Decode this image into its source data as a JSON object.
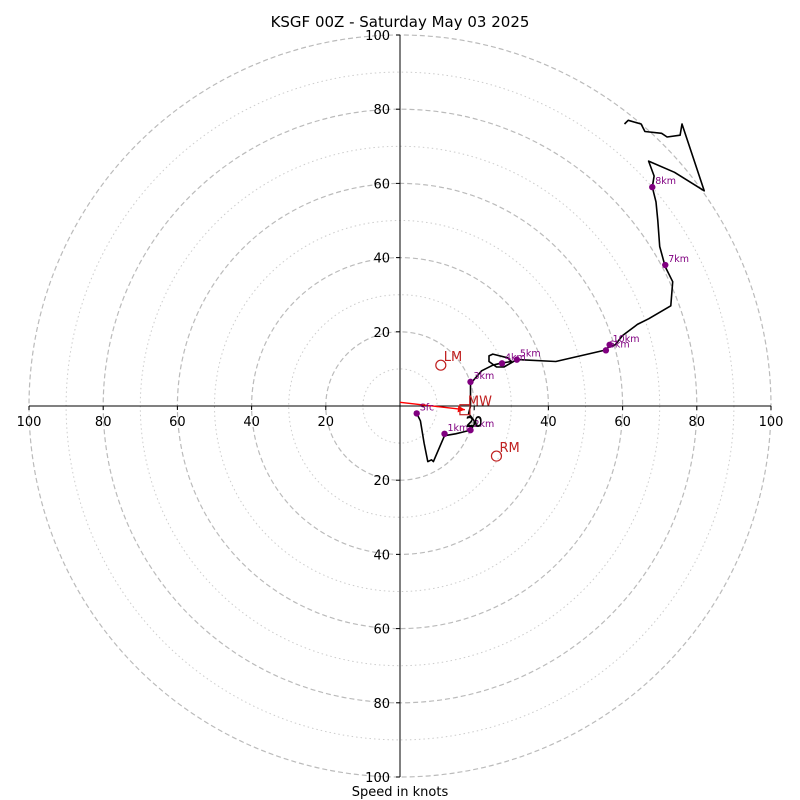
{
  "chart_data": {
    "type": "line",
    "title": "KSGF 00Z - Saturday May 03 2025",
    "xlabel": "Speed in knots",
    "ylabel": "",
    "xlim": [
      -100,
      100
    ],
    "ylim": [
      -100,
      100
    ],
    "major_rings": [
      20,
      40,
      60,
      80,
      100
    ],
    "minor_rings": [
      10,
      30,
      50,
      70,
      90
    ],
    "x_tick_labels": [
      "100",
      "80",
      "60",
      "40",
      "20",
      "20",
      "40",
      "60",
      "80",
      "100"
    ],
    "y_tick_labels": [
      "100",
      "80",
      "60",
      "40",
      "20",
      "20",
      "40",
      "60",
      "80",
      "100"
    ],
    "center_label": "20",
    "hodograph": {
      "name": "hodograph",
      "color": "#000000",
      "u": [
        4.5,
        5.5,
        6.5,
        7.5,
        8.5,
        9,
        12,
        15,
        17,
        19,
        20,
        20,
        18.5,
        19,
        19,
        22,
        25,
        27,
        30,
        29,
        25,
        24,
        24,
        26,
        28,
        31.5,
        42,
        55,
        56.5,
        58,
        60,
        64,
        67,
        73,
        73.5,
        71.5,
        70,
        69.5,
        69,
        68,
        68.5,
        67,
        74,
        82,
        76,
        75.5,
        72,
        70.5,
        66,
        65,
        61.5,
        60.5
      ],
      "v": [
        -2,
        -4,
        -10,
        -15,
        -14.5,
        -15,
        -8,
        -7.5,
        -7,
        -6.5,
        -5,
        -4,
        -2,
        0,
        6,
        9.5,
        11,
        11.5,
        12,
        13,
        14,
        13.5,
        12,
        10.5,
        10.5,
        12.5,
        12,
        15,
        16,
        16.5,
        19,
        22,
        23.5,
        27,
        33.5,
        37.5,
        43,
        50,
        55,
        59,
        62,
        66,
        63,
        58,
        76,
        73,
        72.5,
        73.5,
        74,
        76,
        77,
        76
      ]
    },
    "height_markers": [
      {
        "label": "Sfc",
        "u": 4.5,
        "v": -2
      },
      {
        "label": "1km",
        "u": 12,
        "v": -7.5
      },
      {
        "label": "2km",
        "u": 19,
        "v": -6.5
      },
      {
        "label": "3km",
        "u": 19,
        "v": 6.5
      },
      {
        "label": "4km",
        "u": 27.5,
        "v": 11.5
      },
      {
        "label": "5km",
        "u": 31.5,
        "v": 12.5
      },
      {
        "label": "6km",
        "u": 55.5,
        "v": 15
      },
      {
        "label": "7km",
        "u": 71.5,
        "v": 38
      },
      {
        "label": "8km",
        "u": 68,
        "v": 59
      },
      {
        "label": "10km",
        "u": 56.5,
        "v": 16.5
      }
    ],
    "storm_motion": [
      {
        "label": "LM",
        "u": 11,
        "v": 11
      },
      {
        "label": "RM",
        "u": 26,
        "v": -13.5
      },
      {
        "label": "MW",
        "u": 17.5,
        "v": -1
      }
    ],
    "shear_vector": {
      "u0": 0,
      "v0": 1,
      "u1": 17.5,
      "v1": -1,
      "color": "#ff0000"
    },
    "colors": {
      "trace": "#000000",
      "markers": "#800080",
      "storm": "#c02020",
      "grid": "#bbbbbb"
    }
  }
}
